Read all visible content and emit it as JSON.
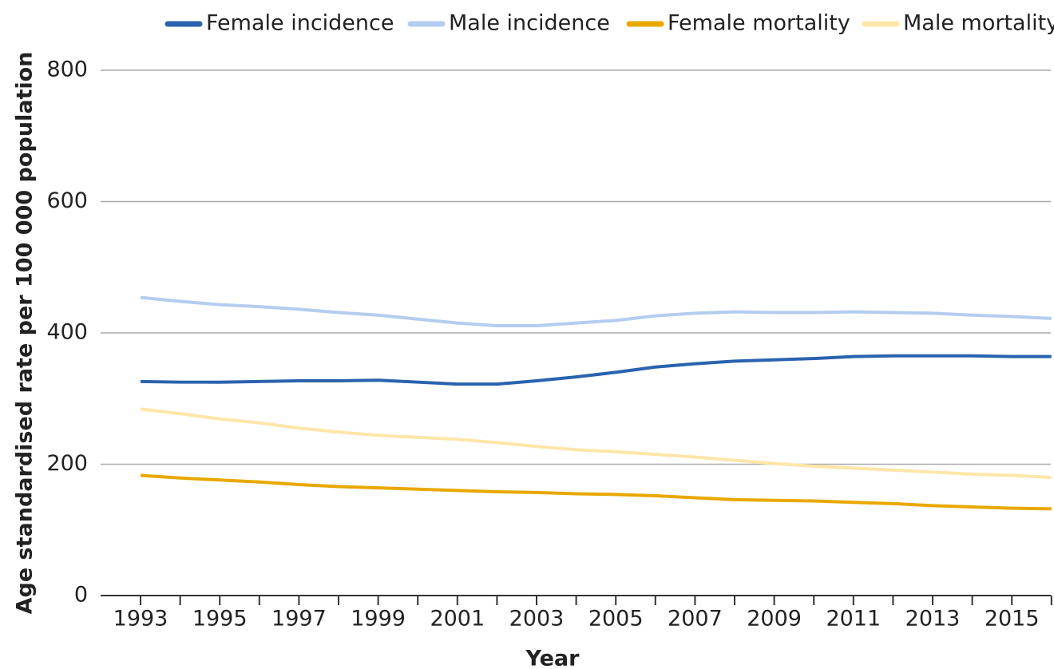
{
  "chart_data": {
    "type": "line",
    "x_label": "Year",
    "y_label": "Age standardised rate per 100 000 population",
    "categories": [
      "1993",
      null,
      "1995",
      null,
      "1997",
      null,
      "1999",
      null,
      "2001",
      null,
      "2003",
      null,
      "2005",
      null,
      "2007",
      null,
      "2009",
      null,
      "2011",
      null,
      "2013",
      null,
      "2015",
      null
    ],
    "series": [
      {
        "name": "Female incidence",
        "color": "#2a63ae",
        "values": [
          326,
          325,
          325,
          326,
          327,
          327,
          328,
          325,
          322,
          322,
          327,
          333,
          340,
          348,
          353,
          357,
          359,
          361,
          364,
          365,
          365,
          365,
          364,
          364
        ]
      },
      {
        "name": "Male incidence",
        "color": "#b4cdef",
        "values": [
          454,
          448,
          443,
          440,
          436,
          431,
          427,
          421,
          415,
          411,
          411,
          415,
          419,
          426,
          430,
          432,
          431,
          431,
          432,
          431,
          430,
          427,
          425,
          422
        ]
      },
      {
        "name": "Female mortality",
        "color": "#e8a800",
        "values": [
          183,
          179,
          176,
          173,
          169,
          166,
          164,
          162,
          160,
          158,
          157,
          155,
          154,
          152,
          149,
          146,
          145,
          144,
          142,
          140,
          137,
          135,
          133,
          132
        ]
      },
      {
        "name": "Male mortality",
        "color": "#fde6a8",
        "values": [
          284,
          277,
          269,
          263,
          255,
          249,
          244,
          241,
          238,
          233,
          227,
          222,
          219,
          215,
          211,
          206,
          201,
          197,
          194,
          191,
          188,
          185,
          183,
          180
        ]
      }
    ],
    "ylim": [
      0,
      800
    ],
    "yticks": [
      0,
      200,
      400,
      600,
      800
    ],
    "grid": true
  }
}
